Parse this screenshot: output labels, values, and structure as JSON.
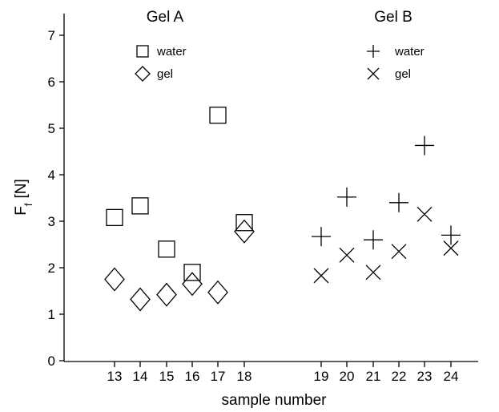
{
  "chart_data": {
    "type": "scatter",
    "xlabel": "sample number",
    "ylabel": "F",
    "ylabel_sub": "f",
    "ylabel_unit": "[N]",
    "ylim": [
      0,
      7
    ],
    "yticks": [
      "0",
      "1",
      "2",
      "3",
      "4",
      "5",
      "6",
      "7"
    ],
    "categories": [
      "13",
      "14",
      "15",
      "16",
      "17",
      "18",
      "19",
      "20",
      "21",
      "22",
      "23",
      "24"
    ],
    "groups": [
      {
        "title": "Gel A",
        "series": [
          {
            "name": "water",
            "marker": "square",
            "x": [
              "13",
              "14",
              "15",
              "16",
              "17",
              "18"
            ],
            "values": [
              3.08,
              3.33,
              2.4,
              1.9,
              5.28,
              2.97
            ]
          },
          {
            "name": "gel",
            "marker": "diamond",
            "x": [
              "13",
              "14",
              "15",
              "16",
              "17",
              "18"
            ],
            "values": [
              1.75,
              1.32,
              1.42,
              1.65,
              1.47,
              2.78
            ]
          }
        ]
      },
      {
        "title": "Gel B",
        "series": [
          {
            "name": "water",
            "marker": "plus",
            "x": [
              "19",
              "20",
              "21",
              "22",
              "23",
              "24"
            ],
            "values": [
              2.67,
              3.52,
              2.6,
              3.4,
              4.63,
              2.7
            ]
          },
          {
            "name": "gel",
            "marker": "cross",
            "x": [
              "19",
              "20",
              "21",
              "22",
              "23",
              "24"
            ],
            "values": [
              1.83,
              2.27,
              1.9,
              2.35,
              3.15,
              2.42
            ]
          }
        ]
      }
    ]
  }
}
